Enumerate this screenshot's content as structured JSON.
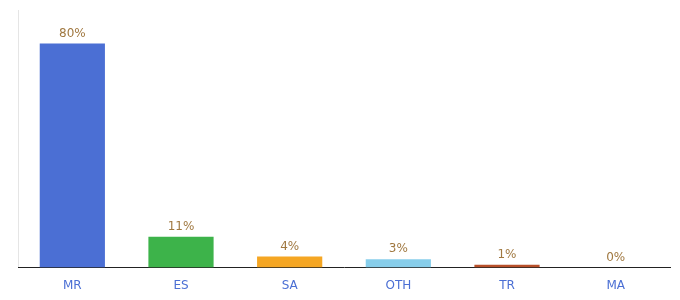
{
  "chart_data": {
    "type": "bar",
    "categories": [
      "MR",
      "ES",
      "SA",
      "OTH",
      "TR",
      "MA"
    ],
    "values": [
      80,
      11,
      4,
      3,
      1,
      0
    ],
    "value_labels": [
      "80%",
      "11%",
      "4%",
      "3%",
      "1%",
      "0%"
    ],
    "data_labels": true,
    "colors": [
      "#4b6fd4",
      "#3db34a",
      "#f5a623",
      "#87ceeb",
      "#b8502a",
      "#c0522a"
    ],
    "ylim": [
      0,
      92
    ],
    "grid": false,
    "tick_labels": "x"
  }
}
